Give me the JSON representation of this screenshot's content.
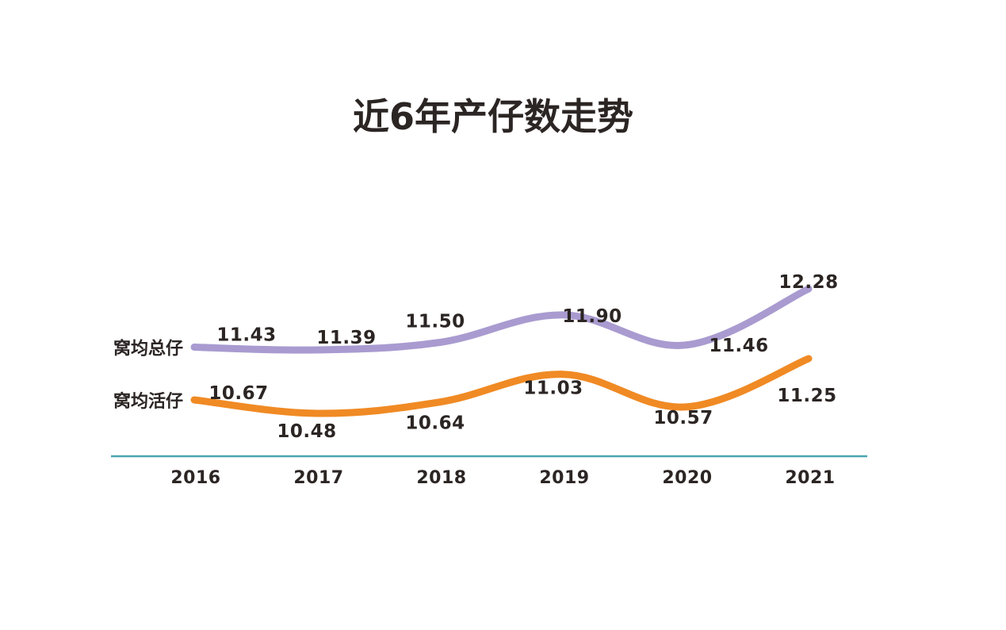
{
  "chart_data": {
    "type": "line",
    "title": "近6年产仔数走势",
    "categories": [
      "2016",
      "2017",
      "2018",
      "2019",
      "2020",
      "2021"
    ],
    "series": [
      {
        "name": "窝均总仔",
        "values": [
          11.43,
          11.39,
          11.5,
          11.9,
          11.46,
          12.28
        ],
        "color": "#a99bd0"
      },
      {
        "name": "窝均活仔",
        "values": [
          10.67,
          10.48,
          10.64,
          11.03,
          10.57,
          11.25
        ],
        "color": "#f08a24"
      }
    ],
    "axis_color": "#4aa6b0",
    "grid": false,
    "legend": "left"
  }
}
